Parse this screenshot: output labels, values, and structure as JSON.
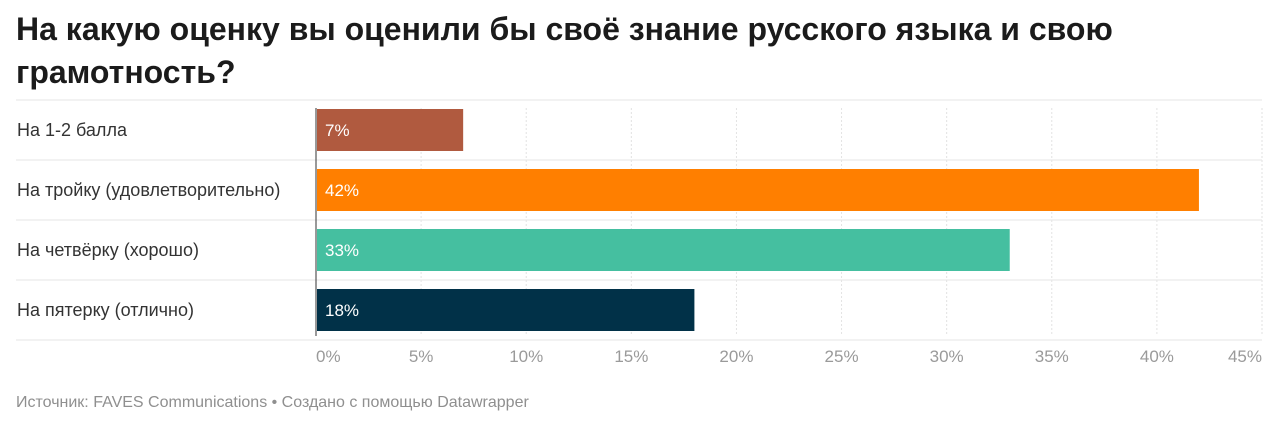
{
  "title": "На какую оценку вы оценили бы своё знание русского языка и свою грамотность?",
  "source": "Источник: FAVES Communications • Создано с помощью Datawrapper",
  "chart_data": {
    "type": "bar",
    "orientation": "horizontal",
    "title": "На какую оценку вы оценили бы своё знание русского языка и свою грамотность?",
    "categories": [
      "На 1-2 балла",
      "На тройку (удовлетворительно)",
      "На четвёрку (хорошо)",
      "На пятерку (отлично)"
    ],
    "values": [
      7,
      42,
      33,
      18
    ],
    "value_labels": [
      "7%",
      "42%",
      "33%",
      "18%"
    ],
    "colors": [
      "#b05a3f",
      "#ff7f00",
      "#45bfa0",
      "#013148"
    ],
    "xlim": [
      0,
      45
    ],
    "ticks": [
      0,
      5,
      10,
      15,
      20,
      25,
      30,
      35,
      40,
      45
    ],
    "tick_labels": [
      "0%",
      "5%",
      "10%",
      "15%",
      "20%",
      "25%",
      "30%",
      "35%",
      "40%",
      "45%"
    ],
    "grid": true
  }
}
